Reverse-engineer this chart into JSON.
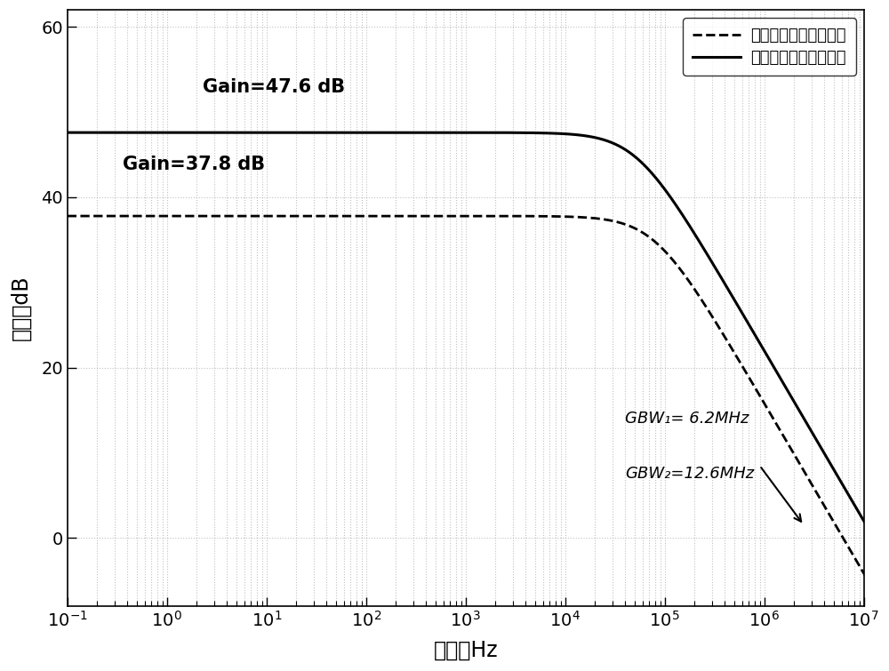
{
  "gain1_db": 47.6,
  "gain2_db": 37.8,
  "gbw1_mhz": 6.2,
  "gbw2_mhz": 12.6,
  "xlabel": "频率，Hz",
  "ylabel": "增益，dB",
  "xlim_log": [
    -1,
    7
  ],
  "ylim": [
    -8,
    62
  ],
  "yticks": [
    0,
    20,
    40,
    60
  ],
  "legend_label1": "原始低压对称式放大器",
  "legend_label2": "本发明跨导增强放大器",
  "annotation_gbw1": "GBW₁= 6.2MHz",
  "annotation_gbw2": "GBW₂=12.6MHz",
  "gain1_label": "Gain=47.6 dB",
  "gain2_label": "Gain=37.8 dB",
  "bg_color": "#ffffff",
  "line_color": "#000000",
  "grid_color": "#999999"
}
